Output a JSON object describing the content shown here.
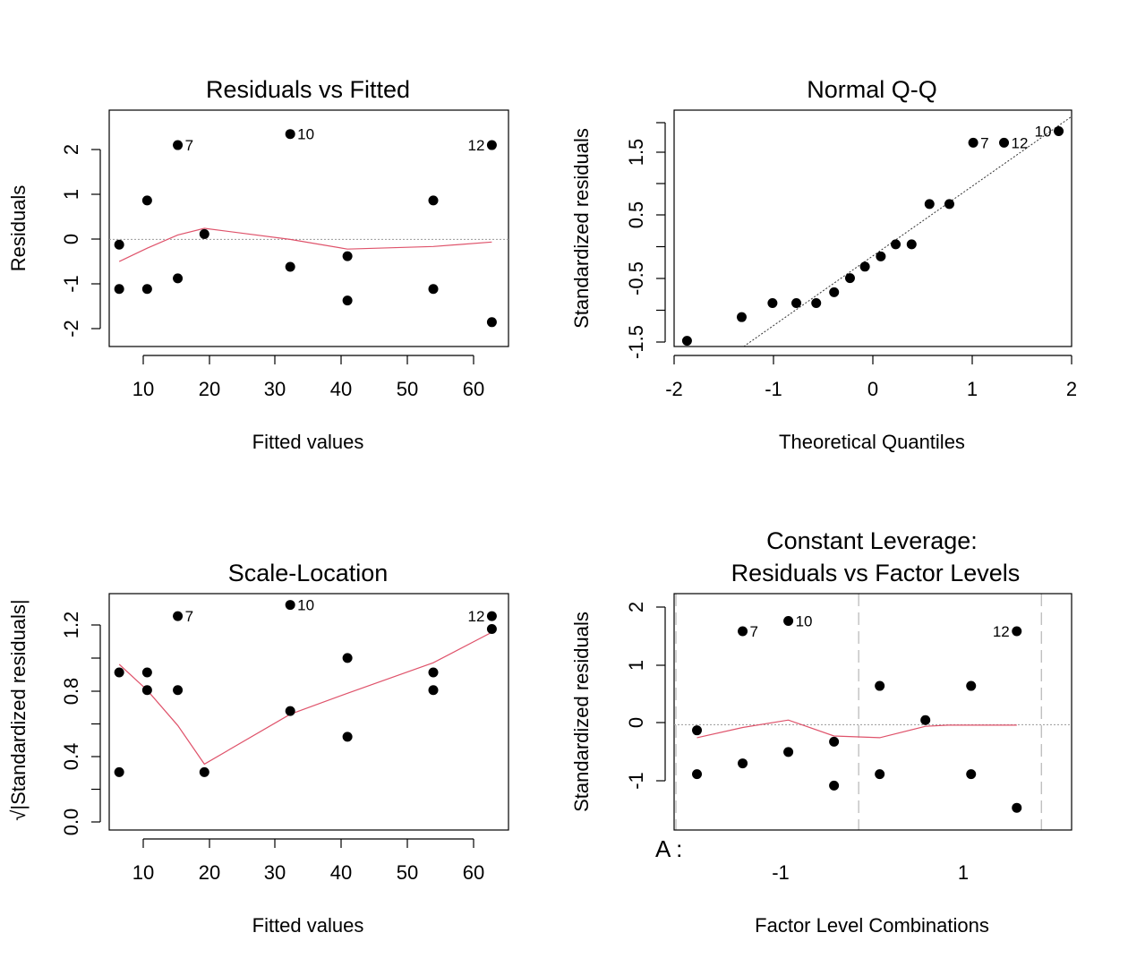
{
  "colors": {
    "points": "#000000",
    "smoother": "#DF536B",
    "refline": "#999999",
    "frame": "#000000",
    "vline": "#C0C0C0"
  },
  "chart_data": [
    {
      "type": "scatter",
      "title": "Residuals vs Fitted",
      "xlabel": "Fitted values",
      "ylabel": "Residuals",
      "xlim": [
        5.5,
        65.5
      ],
      "ylim": [
        -2.42,
        2.92
      ],
      "xticks": [
        "10",
        "20",
        "30",
        "40",
        "50",
        "60"
      ],
      "yticks": [
        "-2",
        "-1",
        "0",
        "1",
        "2"
      ],
      "reference_line": 0,
      "points": [
        {
          "x": 7.0,
          "y": -0.12
        },
        {
          "x": 7.0,
          "y": -1.12
        },
        {
          "x": 11.2,
          "y": 0.88
        },
        {
          "x": 11.2,
          "y": -1.12
        },
        {
          "x": 15.8,
          "y": 2.13,
          "label": "7"
        },
        {
          "x": 15.8,
          "y": -0.88
        },
        {
          "x": 19.8,
          "y": 0.12
        },
        {
          "x": 32.7,
          "y": 2.38,
          "label": "10"
        },
        {
          "x": 32.7,
          "y": -0.62
        },
        {
          "x": 41.3,
          "y": -0.38
        },
        {
          "x": 41.3,
          "y": -1.38
        },
        {
          "x": 54.2,
          "y": 0.88
        },
        {
          "x": 54.2,
          "y": -1.12
        },
        {
          "x": 63.0,
          "y": 2.13,
          "label": "12"
        },
        {
          "x": 63.0,
          "y": -1.87
        }
      ],
      "smoother": {
        "x": [
          7.0,
          11.2,
          15.8,
          19.8,
          32.7,
          41.3,
          54.2,
          63.0
        ],
        "y": [
          -0.5,
          -0.2,
          0.1,
          0.25,
          0.0,
          -0.22,
          -0.16,
          -0.06
        ]
      }
    },
    {
      "type": "scatter",
      "title": "Normal Q-Q",
      "xlabel": "Theoretical Quantiles",
      "ylabel": "Standardized residuals",
      "xlim": [
        -2.0,
        2.0
      ],
      "ylim": [
        -1.55,
        2.15
      ],
      "xticks": [
        "-2",
        "-1",
        "0",
        "1",
        "2"
      ],
      "yticks": [
        "-1.5",
        "-0.5",
        "0.5",
        "1.5"
      ],
      "reference_line": {
        "from": [
          -1.3,
          -1.55
        ],
        "to": [
          2.0,
          2.05
        ]
      },
      "points": [
        {
          "x": -1.87,
          "y": -1.46
        },
        {
          "x": -1.32,
          "y": -1.09
        },
        {
          "x": -1.01,
          "y": -0.87
        },
        {
          "x": -0.77,
          "y": -0.87
        },
        {
          "x": -0.57,
          "y": -0.87
        },
        {
          "x": -0.39,
          "y": -0.7
        },
        {
          "x": -0.23,
          "y": -0.48
        },
        {
          "x": -0.08,
          "y": -0.3
        },
        {
          "x": 0.08,
          "y": -0.14
        },
        {
          "x": 0.23,
          "y": 0.05
        },
        {
          "x": 0.39,
          "y": 0.05
        },
        {
          "x": 0.57,
          "y": 0.68
        },
        {
          "x": 0.77,
          "y": 0.68
        },
        {
          "x": 1.01,
          "y": 1.64,
          "label": "7"
        },
        {
          "x": 1.32,
          "y": 1.64,
          "label": "12"
        },
        {
          "x": 1.87,
          "y": 1.82,
          "label": "10"
        }
      ]
    },
    {
      "type": "scatter",
      "title": "Scale-Location",
      "xlabel": "Fitted values",
      "ylabel": "√|Standardized residuals|",
      "xlim": [
        5.5,
        65.5
      ],
      "ylim": [
        -0.05,
        1.42
      ],
      "xticks": [
        "10",
        "20",
        "30",
        "40",
        "50",
        "60"
      ],
      "yticks": [
        "0.0",
        "0.4",
        "0.8",
        "1.2"
      ],
      "points": [
        {
          "x": 7.0,
          "y": 0.31
        },
        {
          "x": 7.0,
          "y": 0.93
        },
        {
          "x": 11.2,
          "y": 0.93
        },
        {
          "x": 11.2,
          "y": 0.82
        },
        {
          "x": 15.8,
          "y": 1.28,
          "label": "7"
        },
        {
          "x": 15.8,
          "y": 0.82
        },
        {
          "x": 19.8,
          "y": 0.31
        },
        {
          "x": 32.7,
          "y": 1.35,
          "label": "10"
        },
        {
          "x": 32.7,
          "y": 0.69
        },
        {
          "x": 41.3,
          "y": 0.53
        },
        {
          "x": 41.3,
          "y": 1.02
        },
        {
          "x": 54.2,
          "y": 0.93
        },
        {
          "x": 54.2,
          "y": 0.82
        },
        {
          "x": 63.0,
          "y": 1.28,
          "label": "12"
        },
        {
          "x": 63.0,
          "y": 1.2
        }
      ],
      "smoother": {
        "x": [
          7.0,
          11.2,
          15.8,
          19.8,
          32.7,
          41.3,
          54.2,
          63.0
        ],
        "y": [
          0.98,
          0.82,
          0.6,
          0.36,
          0.67,
          0.8,
          0.99,
          1.18
        ]
      }
    },
    {
      "type": "scatter",
      "title": "Constant Leverage:",
      "subtitle": "Residuals vs Factor Levels",
      "xlabel": "Factor Level Combinations",
      "ylabel": "Standardized residuals",
      "factor_label": "A :",
      "xlim": [
        -2.0,
        2.35
      ],
      "ylim": [
        -1.85,
        2.3
      ],
      "xticks": [
        {
          "value": -1,
          "label": "-1"
        },
        {
          "value": 1,
          "label": "1"
        }
      ],
      "yticks": [
        "-1",
        "0",
        "1",
        "2"
      ],
      "reference_line": 0,
      "factor_boundaries": [
        -1.98,
        0.02,
        2.02
      ],
      "points": [
        {
          "x": -1.75,
          "y": -0.1
        },
        {
          "x": -1.75,
          "y": -0.87
        },
        {
          "x": -1.25,
          "y": 1.64,
          "label": "7"
        },
        {
          "x": -1.25,
          "y": -0.68
        },
        {
          "x": -0.75,
          "y": 1.82,
          "label": "10"
        },
        {
          "x": -0.75,
          "y": -0.48
        },
        {
          "x": -0.25,
          "y": -0.3
        },
        {
          "x": -0.25,
          "y": -1.07
        },
        {
          "x": 0.25,
          "y": 0.68
        },
        {
          "x": 0.25,
          "y": -0.87
        },
        {
          "x": 0.75,
          "y": 0.08
        },
        {
          "x": 1.25,
          "y": 0.68
        },
        {
          "x": 1.25,
          "y": -0.87
        },
        {
          "x": 1.75,
          "y": 1.64,
          "label": "12"
        },
        {
          "x": 1.75,
          "y": -1.46
        }
      ],
      "smoother": {
        "x": [
          -1.75,
          -1.25,
          -0.75,
          -0.25,
          0.25,
          0.75,
          1.0,
          1.75
        ],
        "y": [
          -0.23,
          -0.05,
          0.08,
          -0.2,
          -0.23,
          -0.03,
          -0.01,
          -0.01
        ]
      }
    }
  ]
}
